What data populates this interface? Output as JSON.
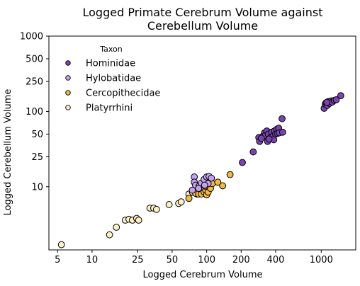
{
  "chart_data": {
    "type": "scatter",
    "title_lines": [
      "Logged Primate Cerebrum Volume against",
      "Cerebellum Volume"
    ],
    "xlabel": "Logged Cerebrum Volume",
    "ylabel": "Logged Cerebellum Volume",
    "x_scale": "log",
    "y_scale": "log",
    "xlim": [
      4.2,
      2000
    ],
    "ylim": [
      1.45,
      1000
    ],
    "x_ticks": [
      5,
      10,
      25,
      50,
      100,
      200,
      400,
      1000
    ],
    "x_tick_labels": [
      "5",
      "10",
      "25",
      "50",
      "100",
      "200",
      "400",
      "1000"
    ],
    "y_ticks": [
      10,
      25,
      50,
      100,
      250,
      500,
      1000
    ],
    "y_tick_labels": [
      "10",
      "25",
      "50",
      "100",
      "250",
      "500",
      "1000"
    ],
    "legend_title": "Taxon",
    "legend_position": "top-left",
    "grid": false,
    "series": [
      {
        "name": "Hominidae",
        "color": "#7b45b0",
        "points": [
          [
            1060,
            110
          ],
          [
            1085,
            125
          ],
          [
            1100,
            130
          ],
          [
            1130,
            120
          ],
          [
            1150,
            135
          ],
          [
            1180,
            128
          ],
          [
            1220,
            138
          ],
          [
            1250,
            133
          ],
          [
            1300,
            140
          ],
          [
            1350,
            143
          ],
          [
            1480,
            162
          ],
          [
            1120,
            132
          ],
          [
            205,
            21
          ],
          [
            255,
            29
          ],
          [
            285,
            45
          ],
          [
            290,
            40
          ],
          [
            310,
            47
          ],
          [
            320,
            52
          ],
          [
            325,
            48
          ],
          [
            335,
            55
          ],
          [
            340,
            40
          ],
          [
            345,
            50
          ],
          [
            360,
            45
          ],
          [
            370,
            53
          ],
          [
            380,
            47
          ],
          [
            385,
            42
          ],
          [
            390,
            55
          ],
          [
            400,
            50
          ],
          [
            410,
            58
          ],
          [
            415,
            51
          ],
          [
            425,
            60
          ],
          [
            430,
            52
          ],
          [
            460,
            53
          ],
          [
            455,
            80
          ],
          [
            350,
            43
          ],
          [
            300,
            44
          ]
        ]
      },
      {
        "name": "Hylobatidae",
        "color": "#c3a3ef",
        "points": [
          [
            78,
            13.5
          ],
          [
            78,
            11.5
          ],
          [
            80,
            10.5
          ],
          [
            86,
            10.2
          ],
          [
            90,
            11.2
          ],
          [
            95,
            12.5
          ],
          [
            100,
            13.5
          ],
          [
            105,
            13.7
          ],
          [
            110,
            13.0
          ],
          [
            103,
            11.0
          ],
          [
            96,
            10.5
          ],
          [
            85,
            9.5
          ],
          [
            75,
            9.0
          ]
        ]
      },
      {
        "name": "Cercopithecidae",
        "color": "#f2b843",
        "points": [
          [
            70,
            7.0
          ],
          [
            80,
            8.2
          ],
          [
            85,
            8.0
          ],
          [
            90,
            8.0
          ],
          [
            95,
            8.5
          ],
          [
            98,
            9.0
          ],
          [
            100,
            7.8
          ],
          [
            103,
            8.5
          ],
          [
            108,
            9.5
          ],
          [
            112,
            11.0
          ],
          [
            125,
            11.5
          ],
          [
            138,
            10.3
          ],
          [
            160,
            14.5
          ],
          [
            97,
            10.2
          ]
        ]
      },
      {
        "name": "Platyrrhini",
        "color": "#fdf0c8",
        "points": [
          [
            5.4,
            1.7
          ],
          [
            14.2,
            2.3
          ],
          [
            16.3,
            2.9
          ],
          [
            19.5,
            3.6
          ],
          [
            21,
            3.7
          ],
          [
            22.5,
            3.6
          ],
          [
            24.5,
            3.8
          ],
          [
            25.5,
            3.6
          ],
          [
            32,
            5.2
          ],
          [
            34.5,
            5.2
          ],
          [
            36.5,
            5.0
          ],
          [
            47,
            5.8
          ],
          [
            57,
            6.0
          ],
          [
            60,
            6.3
          ],
          [
            70,
            8.0
          ],
          [
            75,
            8.5
          ],
          [
            82,
            8.0
          ]
        ]
      }
    ]
  }
}
